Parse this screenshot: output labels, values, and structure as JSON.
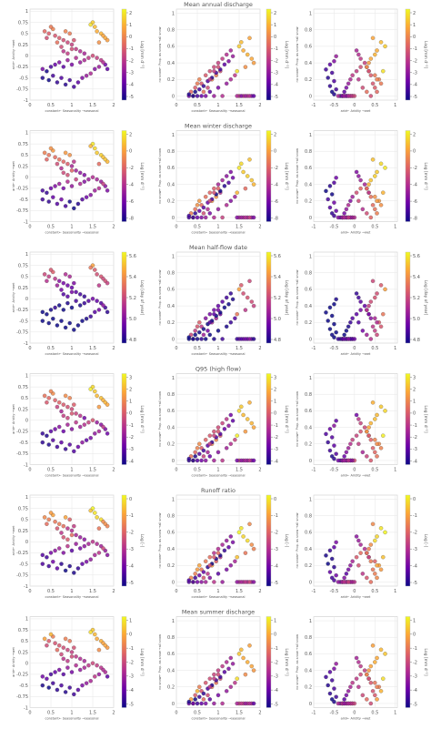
{
  "figure": {
    "row_titles": [
      "Mean annual discharge",
      "Mean winter discharge",
      "Mean half-flow date",
      "Q95 (high flow)",
      "Runoff ratio",
      "Mean summer discharge"
    ],
    "colorbar_labels": [
      "Log [mm d⁻¹]",
      "Log [mm d⁻¹]",
      "Log [day of year]",
      "Log [mm d⁻¹]",
      "Log [-]",
      "Log [mm d⁻¹]"
    ],
    "colorbar_ticks": [
      [
        "2",
        "1",
        "0",
        "-1",
        "-2",
        "-3",
        "-4",
        "-5"
      ],
      [
        "2",
        "0",
        "-2",
        "-4",
        "-6",
        "-8"
      ],
      [
        "5.6",
        "5.4",
        "5.2",
        "5.0",
        "4.8"
      ],
      [
        "3",
        "2",
        "1",
        "0",
        "-1",
        "-2",
        "-3",
        "-4"
      ],
      [
        "0",
        "-1",
        "-2",
        "-3",
        "-4",
        "-5"
      ],
      [
        "1",
        "0",
        "-1",
        "-2",
        "-3",
        "-4",
        "-5"
      ]
    ],
    "left_xlabel": "constant← Seasonality →seasonal",
    "left_ylabel": "arid← Aridity →wet",
    "mid_xlabel": "constant← Seasonality →seasonal",
    "mid_ylabel": "no snow← Prop. as snow →all snow",
    "right_xlabel": "arid← Aridity →wet",
    "right_ylabel": "no snow← Prop. as snow →all snow"
  },
  "chart_data": {
    "type": "scatter",
    "colormap": [
      "#0d0887",
      "#6a00a8",
      "#b12a90",
      "#e16462",
      "#fca636",
      "#f0f921"
    ],
    "panels": {
      "left": {
        "x": "seasonality",
        "y": "aridity",
        "xlim": [
          0,
          2
        ],
        "ylim": [
          -1,
          1.05
        ],
        "xticks": [
          0,
          0.5,
          1,
          1.5,
          2
        ],
        "yticks": [
          1,
          0.75,
          0.5,
          0.25,
          0,
          -0.25,
          -0.5,
          -0.75,
          -1
        ]
      },
      "middle": {
        "x": "seasonality",
        "y": "snow_fraction",
        "xlim": [
          0,
          2
        ],
        "ylim": [
          -0.05,
          1.05
        ],
        "xticks": [
          0,
          0.5,
          1,
          1.5,
          2
        ],
        "yticks": [
          0,
          0.2,
          0.4,
          0.6,
          0.8,
          1
        ]
      },
      "right": {
        "x": "aridity",
        "y": "snow_fraction",
        "xlim": [
          -1,
          1.05
        ],
        "ylim": [
          -0.05,
          1.05
        ],
        "xticks": [
          -1,
          -0.5,
          0,
          0.5,
          1
        ],
        "yticks": [
          0,
          0.2,
          0.4,
          0.6,
          0.8,
          1
        ]
      }
    },
    "points": {
      "seasonality": [
        0.35,
        0.45,
        0.55,
        0.6,
        0.7,
        0.8,
        0.85,
        0.9,
        0.95,
        1.0,
        1.05,
        1.1,
        0.75,
        0.65,
        0.5,
        0.4,
        1.5,
        1.55,
        1.6,
        1.7,
        1.75,
        1.8,
        1.85,
        1.65,
        1.45,
        1.2,
        1.3,
        0.3,
        0.4,
        0.5,
        0.6,
        0.7,
        0.8,
        0.9,
        1.0,
        1.1,
        1.2,
        1.3,
        1.4,
        1.5,
        1.6,
        1.7,
        1.8,
        1.85,
        0.3,
        0.45,
        0.55,
        0.65,
        0.75,
        0.85,
        0.95,
        1.05,
        1.15,
        1.25,
        1.35,
        1.45,
        1.55,
        1.65,
        1.75,
        0.9,
        1.0,
        0.8
      ],
      "aridity": [
        0.55,
        0.5,
        0.6,
        0.45,
        0.4,
        0.35,
        0.55,
        0.3,
        0.5,
        0.25,
        0.35,
        0.15,
        0.2,
        0.3,
        0.65,
        0.4,
        0.75,
        0.65,
        0.55,
        0.5,
        0.45,
        0.4,
        0.35,
        0.3,
        0.7,
        0.1,
        0.05,
        -0.3,
        -0.35,
        -0.25,
        -0.2,
        -0.15,
        -0.25,
        -0.1,
        -0.2,
        -0.05,
        -0.15,
        -0.1,
        -0.05,
        0.0,
        -0.05,
        -0.1,
        -0.2,
        -0.3,
        -0.5,
        -0.55,
        -0.45,
        -0.6,
        -0.5,
        -0.65,
        -0.55,
        -0.7,
        -0.6,
        -0.5,
        -0.45,
        -0.4,
        -0.3,
        -0.25,
        -0.15,
        0.05,
        0.15,
        0.1
      ],
      "snow_fraction": [
        0.05,
        0.1,
        0.2,
        0.15,
        0.25,
        0.3,
        0.2,
        0.35,
        0.25,
        0.4,
        0.3,
        0.45,
        0.1,
        0.05,
        0.15,
        0.0,
        0.6,
        0.65,
        0.55,
        0.5,
        0.7,
        0.45,
        0.4,
        0.35,
        0.3,
        0.5,
        0.55,
        0.0,
        0.0,
        0.0,
        0.0,
        0.0,
        0.05,
        0.0,
        0.1,
        0.0,
        0.15,
        0.2,
        0.25,
        0.0,
        0.0,
        0.0,
        0.0,
        0.0,
        0.02,
        0.05,
        0.08,
        0.12,
        0.18,
        0.22,
        0.28,
        0.32,
        0.38,
        0.42,
        0.48,
        0.0,
        0.0,
        0.0,
        0.0,
        0.3,
        0.35,
        0.2
      ],
      "color_rank": [
        0.7,
        0.65,
        0.75,
        0.6,
        0.6,
        0.55,
        0.7,
        0.5,
        0.65,
        0.45,
        0.5,
        0.4,
        0.45,
        0.55,
        0.75,
        0.6,
        0.95,
        0.9,
        0.85,
        0.85,
        0.8,
        0.8,
        0.75,
        0.7,
        0.9,
        0.35,
        0.3,
        0.15,
        0.1,
        0.2,
        0.25,
        0.3,
        0.2,
        0.35,
        0.25,
        0.4,
        0.3,
        0.35,
        0.4,
        0.45,
        0.4,
        0.35,
        0.3,
        0.25,
        0.1,
        0.05,
        0.15,
        0.1,
        0.15,
        0.05,
        0.1,
        0.08,
        0.12,
        0.2,
        0.25,
        0.3,
        0.35,
        0.4,
        0.45,
        0.5,
        0.55,
        0.45
      ]
    }
  }
}
